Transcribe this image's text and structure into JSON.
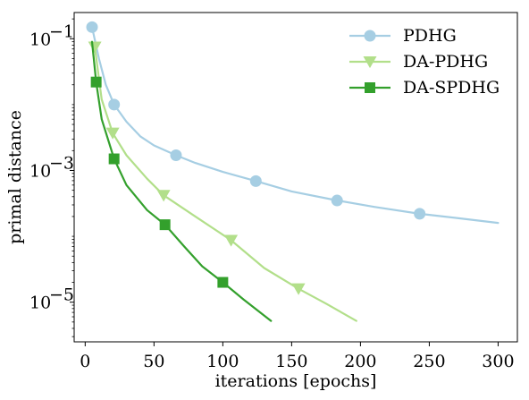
{
  "chart_data": {
    "type": "line",
    "xlabel": "iterations [epochs]",
    "ylabel": "primal distance",
    "xlim": [
      -8,
      314
    ],
    "ylim": [
      2.5e-06,
      0.25
    ],
    "yscale": "log",
    "xticks": [
      0,
      50,
      100,
      150,
      200,
      250,
      300
    ],
    "xtick_labels": [
      "0",
      "50",
      "100",
      "150",
      "200",
      "250",
      "300"
    ],
    "yticks": [
      0.1,
      0.001,
      1e-05
    ],
    "ytick_labels": [
      {
        "base": "10",
        "exp": "−1"
      },
      {
        "base": "10",
        "exp": "−3"
      },
      {
        "base": "10",
        "exp": "−5"
      }
    ],
    "grid": false,
    "legend_position": "top-right",
    "series": [
      {
        "name": "PDHG",
        "color": "#a6cee3",
        "marker": "circle",
        "x": [
          5,
          10,
          15,
          21,
          30,
          40,
          50,
          66,
          80,
          100,
          124,
          150,
          183,
          210,
          243,
          270,
          300
        ],
        "y": [
          0.15,
          0.05,
          0.02,
          0.01,
          0.0055,
          0.0033,
          0.0024,
          0.0017,
          0.0013,
          0.00095,
          0.00069,
          0.00048,
          0.00035,
          0.00028,
          0.00022,
          0.00019,
          0.00016
        ],
        "marker_x": [
          5,
          21,
          66,
          124,
          183,
          243
        ],
        "marker_y": [
          0.15,
          0.01,
          0.0017,
          0.00069,
          0.00035,
          0.00022
        ]
      },
      {
        "name": "DA-PDHG",
        "color": "#b2df8a",
        "marker": "triangle-down",
        "x": [
          7,
          12,
          20,
          30,
          45,
          57,
          80,
          106,
          130,
          155,
          175,
          197
        ],
        "y": [
          0.075,
          0.012,
          0.0037,
          0.0017,
          0.00075,
          0.00042,
          0.0002,
          8.7e-05,
          3.3e-05,
          1.6e-05,
          9.5e-06,
          5.2e-06
        ],
        "marker_x": [
          7,
          20,
          57,
          106,
          155
        ],
        "marker_y": [
          0.075,
          0.0037,
          0.00042,
          8.7e-05,
          1.6e-05
        ]
      },
      {
        "name": "DA-SPDHG",
        "color": "#33a02c",
        "marker": "square",
        "x": [
          5,
          8,
          12,
          21,
          30,
          45,
          58,
          72,
          85,
          100,
          115,
          135
        ],
        "y": [
          0.09,
          0.022,
          0.006,
          0.0015,
          0.0006,
          0.00025,
          0.00015,
          7e-05,
          3.5e-05,
          2e-05,
          1.1e-05,
          5.2e-06
        ],
        "marker_x": [
          8,
          21,
          58,
          100
        ],
        "marker_y": [
          0.022,
          0.0015,
          0.00015,
          2e-05
        ]
      }
    ]
  }
}
